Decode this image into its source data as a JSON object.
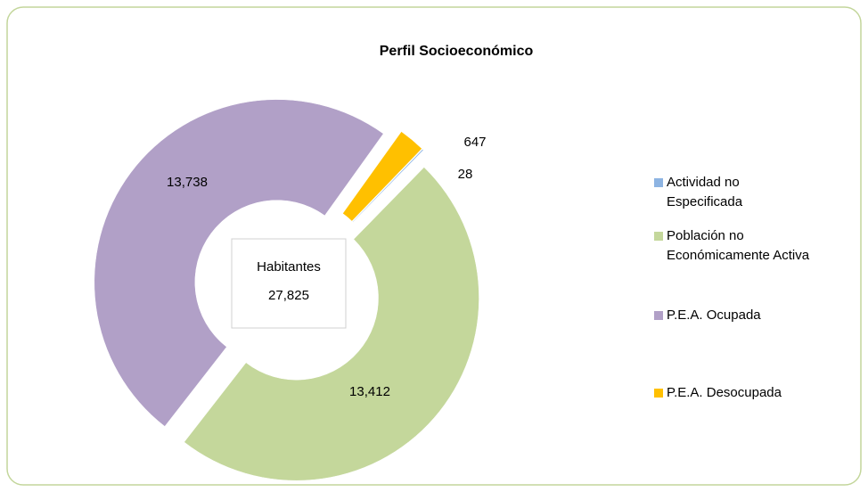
{
  "chart_data": {
    "type": "donut",
    "title": "Perfil Socioeconómico",
    "categories": [
      "Actividad no Especificada",
      "Población no Económicamente Activa",
      "P.E.A. Ocupada",
      "P.E.A. Desocupada"
    ],
    "values": [
      28,
      13412,
      13738,
      647
    ],
    "value_labels": [
      "28",
      "13,412",
      "13,738",
      "647"
    ],
    "colors": [
      "#8db4e2",
      "#c4d79b",
      "#b1a0c7",
      "#ffc000"
    ],
    "center_text": [
      "Habitantes",
      "27,825"
    ],
    "legend": "right"
  }
}
